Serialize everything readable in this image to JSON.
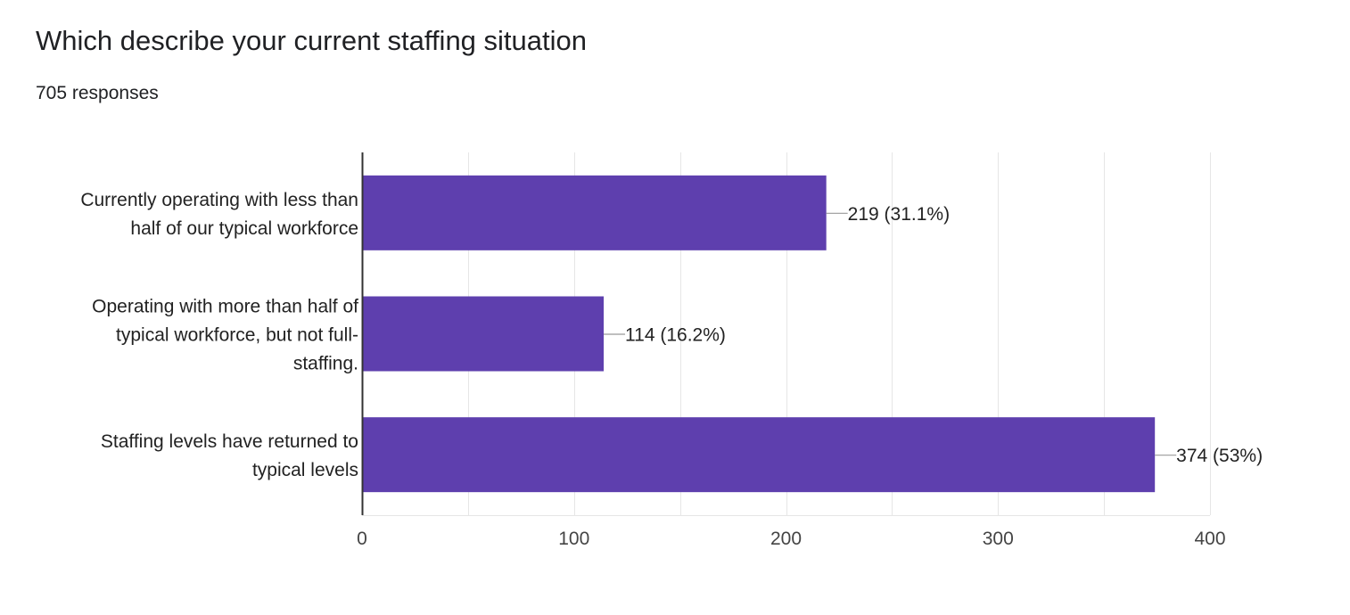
{
  "title": "Which describe your current staffing situation",
  "subtitle": "705 responses",
  "colors": {
    "bar": "#5e3fae",
    "grid": "#e6e6e6",
    "axis": "#333333",
    "leader": "#999999"
  },
  "chart_data": {
    "type": "bar",
    "orientation": "horizontal",
    "categories": [
      "Currently operating with less than half of our typical workforce",
      "Operating with more than half of typical workforce, but not full-staffing.",
      "Staffing levels have returned to typical levels"
    ],
    "category_lines": [
      [
        "Currently operating with less than",
        "half of our typical workforce"
      ],
      [
        "Operating with more than half of",
        "typical workforce, but not full-",
        "staffing."
      ],
      [
        "Staffing levels have returned to",
        "typical levels"
      ]
    ],
    "values": [
      219,
      114,
      374
    ],
    "data_labels": [
      "219 (31.1%)",
      "114 (16.2%)",
      "374 (53%)"
    ],
    "xlim": [
      0,
      400
    ],
    "xticks": [
      0,
      100,
      200,
      300,
      400
    ],
    "grid": true,
    "legend": "none"
  }
}
